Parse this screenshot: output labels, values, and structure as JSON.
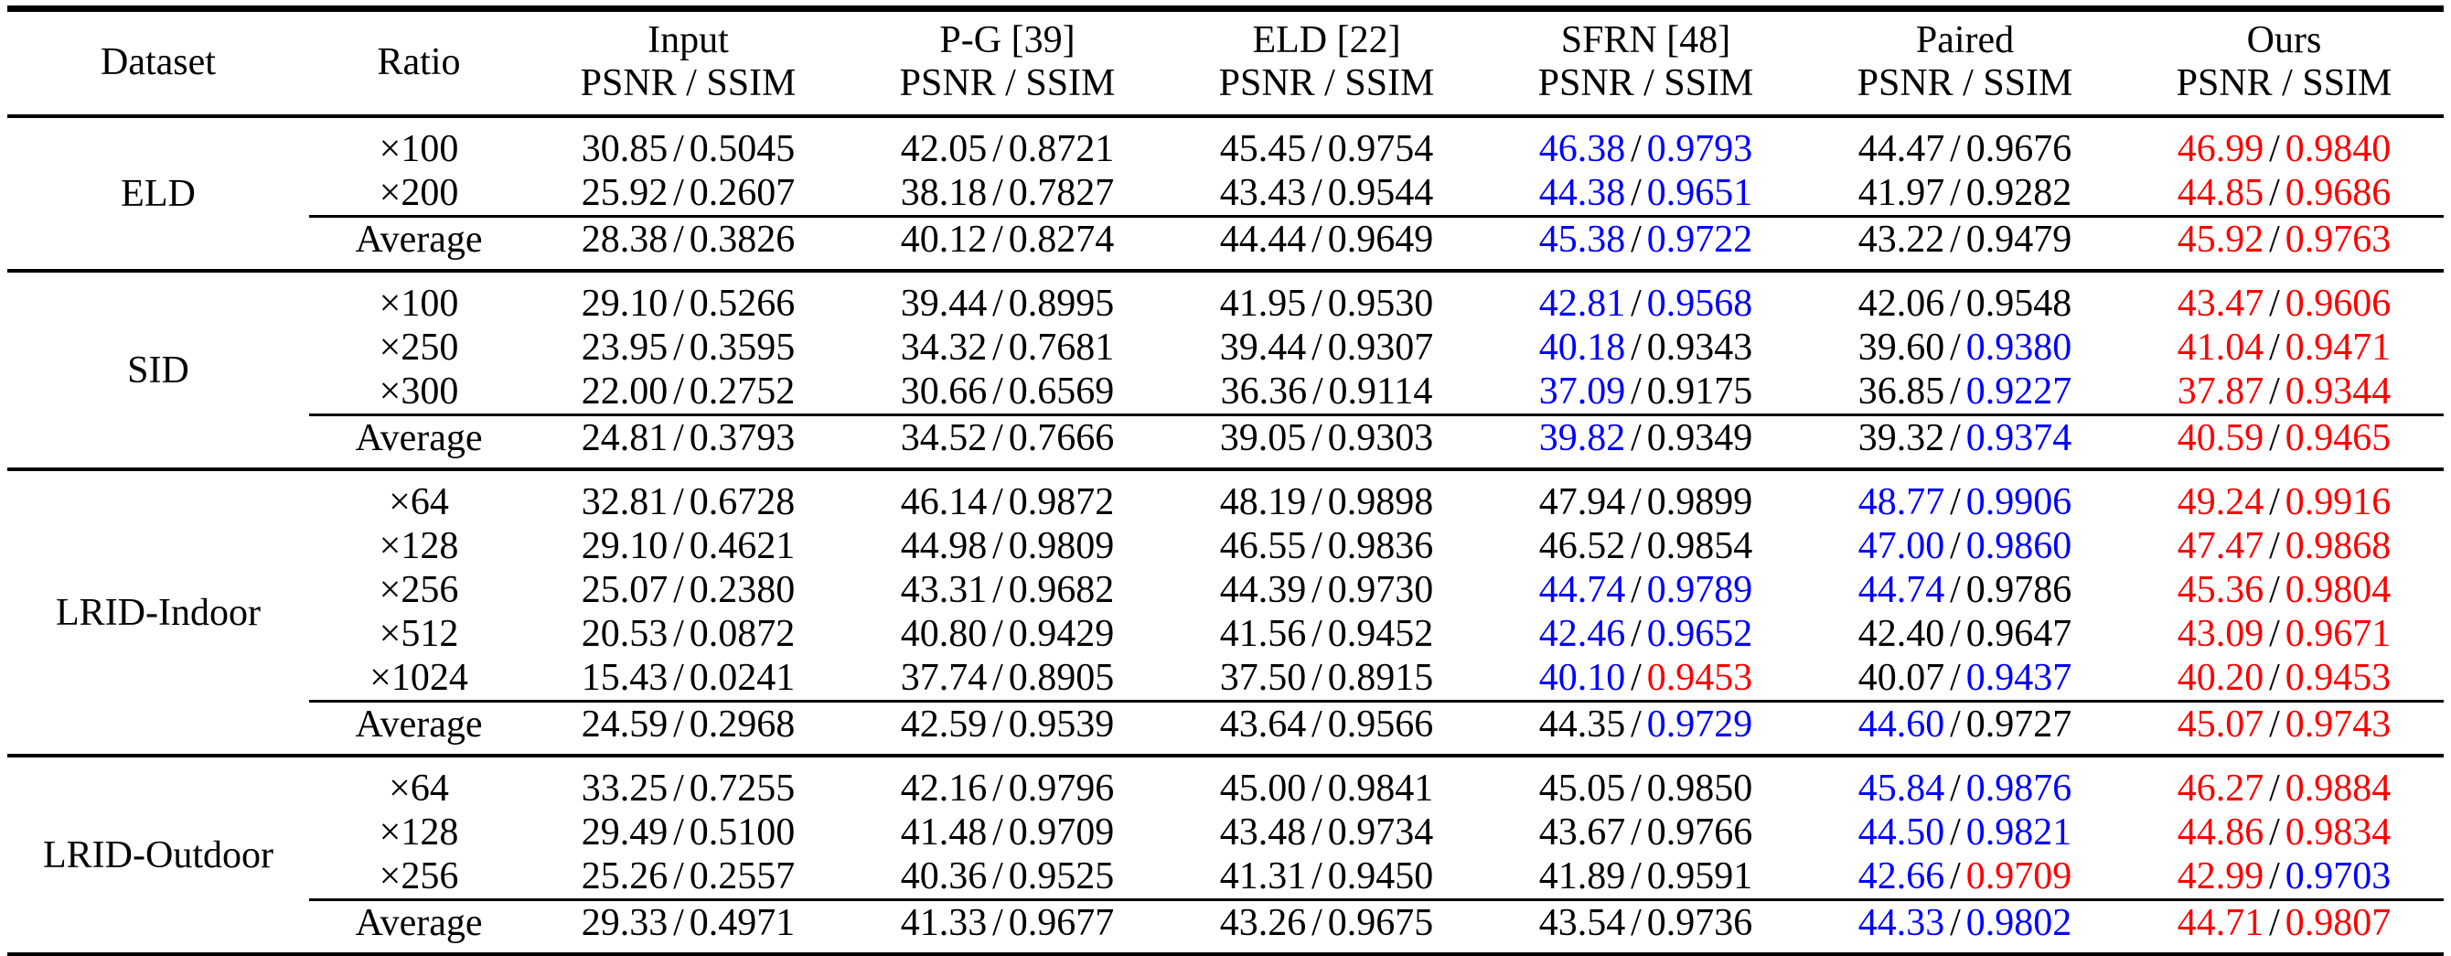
{
  "colors": {
    "best": "#ff0000",
    "second_best": "#0000ff",
    "default": "#000000"
  },
  "color_map": {
    "k": "#000000",
    "b": "#0000ff",
    "r": "#ff0000"
  },
  "cell_separator": "/",
  "header": {
    "dataset_label": "Dataset",
    "ratio_label": "Ratio",
    "metric_label": "PSNR / SSIM",
    "methods": [
      "Input",
      "P-G [39]",
      "ELD [22]",
      "SFRN [48]",
      "Paired",
      "Ours"
    ]
  },
  "groups": [
    {
      "dataset": "ELD",
      "rows": [
        {
          "ratio": "×100",
          "is_average": false,
          "cells": [
            [
              "30.85",
              "0.5045",
              "k",
              "k"
            ],
            [
              "42.05",
              "0.8721",
              "k",
              "k"
            ],
            [
              "45.45",
              "0.9754",
              "k",
              "k"
            ],
            [
              "46.38",
              "0.9793",
              "b",
              "b"
            ],
            [
              "44.47",
              "0.9676",
              "k",
              "k"
            ],
            [
              "46.99",
              "0.9840",
              "r",
              "r"
            ]
          ]
        },
        {
          "ratio": "×200",
          "is_average": false,
          "cells": [
            [
              "25.92",
              "0.2607",
              "k",
              "k"
            ],
            [
              "38.18",
              "0.7827",
              "k",
              "k"
            ],
            [
              "43.43",
              "0.9544",
              "k",
              "k"
            ],
            [
              "44.38",
              "0.9651",
              "b",
              "b"
            ],
            [
              "41.97",
              "0.9282",
              "k",
              "k"
            ],
            [
              "44.85",
              "0.9686",
              "r",
              "r"
            ]
          ]
        },
        {
          "ratio": "Average",
          "is_average": true,
          "cells": [
            [
              "28.38",
              "0.3826",
              "k",
              "k"
            ],
            [
              "40.12",
              "0.8274",
              "k",
              "k"
            ],
            [
              "44.44",
              "0.9649",
              "k",
              "k"
            ],
            [
              "45.38",
              "0.9722",
              "b",
              "b"
            ],
            [
              "43.22",
              "0.9479",
              "k",
              "k"
            ],
            [
              "45.92",
              "0.9763",
              "r",
              "r"
            ]
          ]
        }
      ]
    },
    {
      "dataset": "SID",
      "rows": [
        {
          "ratio": "×100",
          "is_average": false,
          "cells": [
            [
              "29.10",
              "0.5266",
              "k",
              "k"
            ],
            [
              "39.44",
              "0.8995",
              "k",
              "k"
            ],
            [
              "41.95",
              "0.9530",
              "k",
              "k"
            ],
            [
              "42.81",
              "0.9568",
              "b",
              "b"
            ],
            [
              "42.06",
              "0.9548",
              "k",
              "k"
            ],
            [
              "43.47",
              "0.9606",
              "r",
              "r"
            ]
          ]
        },
        {
          "ratio": "×250",
          "is_average": false,
          "cells": [
            [
              "23.95",
              "0.3595",
              "k",
              "k"
            ],
            [
              "34.32",
              "0.7681",
              "k",
              "k"
            ],
            [
              "39.44",
              "0.9307",
              "k",
              "k"
            ],
            [
              "40.18",
              "0.9343",
              "b",
              "k"
            ],
            [
              "39.60",
              "0.9380",
              "k",
              "b"
            ],
            [
              "41.04",
              "0.9471",
              "r",
              "r"
            ]
          ]
        },
        {
          "ratio": "×300",
          "is_average": false,
          "cells": [
            [
              "22.00",
              "0.2752",
              "k",
              "k"
            ],
            [
              "30.66",
              "0.6569",
              "k",
              "k"
            ],
            [
              "36.36",
              "0.9114",
              "k",
              "k"
            ],
            [
              "37.09",
              "0.9175",
              "b",
              "k"
            ],
            [
              "36.85",
              "0.9227",
              "k",
              "b"
            ],
            [
              "37.87",
              "0.9344",
              "r",
              "r"
            ]
          ]
        },
        {
          "ratio": "Average",
          "is_average": true,
          "cells": [
            [
              "24.81",
              "0.3793",
              "k",
              "k"
            ],
            [
              "34.52",
              "0.7666",
              "k",
              "k"
            ],
            [
              "39.05",
              "0.9303",
              "k",
              "k"
            ],
            [
              "39.82",
              "0.9349",
              "b",
              "k"
            ],
            [
              "39.32",
              "0.9374",
              "k",
              "b"
            ],
            [
              "40.59",
              "0.9465",
              "r",
              "r"
            ]
          ]
        }
      ]
    },
    {
      "dataset": "LRID-Indoor",
      "rows": [
        {
          "ratio": "×64",
          "is_average": false,
          "cells": [
            [
              "32.81",
              "0.6728",
              "k",
              "k"
            ],
            [
              "46.14",
              "0.9872",
              "k",
              "k"
            ],
            [
              "48.19",
              "0.9898",
              "k",
              "k"
            ],
            [
              "47.94",
              "0.9899",
              "k",
              "k"
            ],
            [
              "48.77",
              "0.9906",
              "b",
              "b"
            ],
            [
              "49.24",
              "0.9916",
              "r",
              "r"
            ]
          ]
        },
        {
          "ratio": "×128",
          "is_average": false,
          "cells": [
            [
              "29.10",
              "0.4621",
              "k",
              "k"
            ],
            [
              "44.98",
              "0.9809",
              "k",
              "k"
            ],
            [
              "46.55",
              "0.9836",
              "k",
              "k"
            ],
            [
              "46.52",
              "0.9854",
              "k",
              "k"
            ],
            [
              "47.00",
              "0.9860",
              "b",
              "b"
            ],
            [
              "47.47",
              "0.9868",
              "r",
              "r"
            ]
          ]
        },
        {
          "ratio": "×256",
          "is_average": false,
          "cells": [
            [
              "25.07",
              "0.2380",
              "k",
              "k"
            ],
            [
              "43.31",
              "0.9682",
              "k",
              "k"
            ],
            [
              "44.39",
              "0.9730",
              "k",
              "k"
            ],
            [
              "44.74",
              "0.9789",
              "b",
              "b"
            ],
            [
              "44.74",
              "0.9786",
              "b",
              "k"
            ],
            [
              "45.36",
              "0.9804",
              "r",
              "r"
            ]
          ]
        },
        {
          "ratio": "×512",
          "is_average": false,
          "cells": [
            [
              "20.53",
              "0.0872",
              "k",
              "k"
            ],
            [
              "40.80",
              "0.9429",
              "k",
              "k"
            ],
            [
              "41.56",
              "0.9452",
              "k",
              "k"
            ],
            [
              "42.46",
              "0.9652",
              "b",
              "b"
            ],
            [
              "42.40",
              "0.9647",
              "k",
              "k"
            ],
            [
              "43.09",
              "0.9671",
              "r",
              "r"
            ]
          ]
        },
        {
          "ratio": "×1024",
          "is_average": false,
          "cells": [
            [
              "15.43",
              "0.0241",
              "k",
              "k"
            ],
            [
              "37.74",
              "0.8905",
              "k",
              "k"
            ],
            [
              "37.50",
              "0.8915",
              "k",
              "k"
            ],
            [
              "40.10",
              "0.9453",
              "b",
              "r"
            ],
            [
              "40.07",
              "0.9437",
              "k",
              "b"
            ],
            [
              "40.20",
              "0.9453",
              "r",
              "r"
            ]
          ]
        },
        {
          "ratio": "Average",
          "is_average": true,
          "cells": [
            [
              "24.59",
              "0.2968",
              "k",
              "k"
            ],
            [
              "42.59",
              "0.9539",
              "k",
              "k"
            ],
            [
              "43.64",
              "0.9566",
              "k",
              "k"
            ],
            [
              "44.35",
              "0.9729",
              "k",
              "b"
            ],
            [
              "44.60",
              "0.9727",
              "b",
              "k"
            ],
            [
              "45.07",
              "0.9743",
              "r",
              "r"
            ]
          ]
        }
      ]
    },
    {
      "dataset": "LRID-Outdoor",
      "rows": [
        {
          "ratio": "×64",
          "is_average": false,
          "cells": [
            [
              "33.25",
              "0.7255",
              "k",
              "k"
            ],
            [
              "42.16",
              "0.9796",
              "k",
              "k"
            ],
            [
              "45.00",
              "0.9841",
              "k",
              "k"
            ],
            [
              "45.05",
              "0.9850",
              "k",
              "k"
            ],
            [
              "45.84",
              "0.9876",
              "b",
              "b"
            ],
            [
              "46.27",
              "0.9884",
              "r",
              "r"
            ]
          ]
        },
        {
          "ratio": "×128",
          "is_average": false,
          "cells": [
            [
              "29.49",
              "0.5100",
              "k",
              "k"
            ],
            [
              "41.48",
              "0.9709",
              "k",
              "k"
            ],
            [
              "43.48",
              "0.9734",
              "k",
              "k"
            ],
            [
              "43.67",
              "0.9766",
              "k",
              "k"
            ],
            [
              "44.50",
              "0.9821",
              "b",
              "b"
            ],
            [
              "44.86",
              "0.9834",
              "r",
              "r"
            ]
          ]
        },
        {
          "ratio": "×256",
          "is_average": false,
          "cells": [
            [
              "25.26",
              "0.2557",
              "k",
              "k"
            ],
            [
              "40.36",
              "0.9525",
              "k",
              "k"
            ],
            [
              "41.31",
              "0.9450",
              "k",
              "k"
            ],
            [
              "41.89",
              "0.9591",
              "k",
              "k"
            ],
            [
              "42.66",
              "0.9709",
              "b",
              "r"
            ],
            [
              "42.99",
              "0.9703",
              "r",
              "b"
            ]
          ]
        },
        {
          "ratio": "Average",
          "is_average": true,
          "cells": [
            [
              "29.33",
              "0.4971",
              "k",
              "k"
            ],
            [
              "41.33",
              "0.9677",
              "k",
              "k"
            ],
            [
              "43.26",
              "0.9675",
              "k",
              "k"
            ],
            [
              "43.54",
              "0.9736",
              "k",
              "k"
            ],
            [
              "44.33",
              "0.9802",
              "b",
              "b"
            ],
            [
              "44.71",
              "0.9807",
              "r",
              "r"
            ]
          ]
        }
      ]
    }
  ]
}
